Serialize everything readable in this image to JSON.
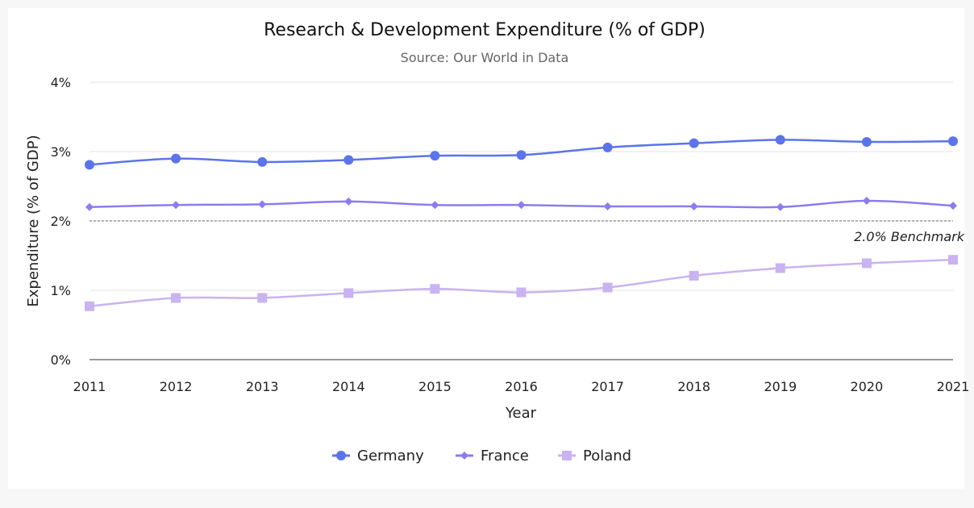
{
  "chart_data": {
    "type": "line",
    "title": "Research & Development Expenditure (% of GDP)",
    "subtitle": "Source: Our World in Data",
    "xlabel": "Year",
    "ylabel": "Expenditure (% of GDP)",
    "ylim": [
      0,
      4
    ],
    "yticks": [
      "0%",
      "1%",
      "2%",
      "3%",
      "4%"
    ],
    "grid": true,
    "legend_position": "bottom",
    "x": [
      2011,
      2012,
      2013,
      2014,
      2015,
      2016,
      2017,
      2018,
      2019,
      2020,
      2021
    ],
    "series": [
      {
        "name": "Germany",
        "color": "#5b74ea",
        "marker": "circle",
        "values": [
          2.81,
          2.9,
          2.85,
          2.88,
          2.94,
          2.95,
          3.06,
          3.12,
          3.17,
          3.14,
          3.15
        ]
      },
      {
        "name": "France",
        "color": "#8b7cf0",
        "marker": "diamond",
        "values": [
          2.2,
          2.23,
          2.24,
          2.28,
          2.23,
          2.23,
          2.21,
          2.21,
          2.2,
          2.29,
          2.22
        ]
      },
      {
        "name": "Poland",
        "color": "#c9b3f0",
        "marker": "square",
        "values": [
          0.77,
          0.89,
          0.89,
          0.96,
          1.02,
          0.97,
          1.04,
          1.21,
          1.32,
          1.39,
          1.44
        ]
      }
    ],
    "annotations": [
      {
        "label": "2.0% Benchmark",
        "y": 2.0,
        "style": "dashed",
        "color": "#666666"
      }
    ]
  }
}
